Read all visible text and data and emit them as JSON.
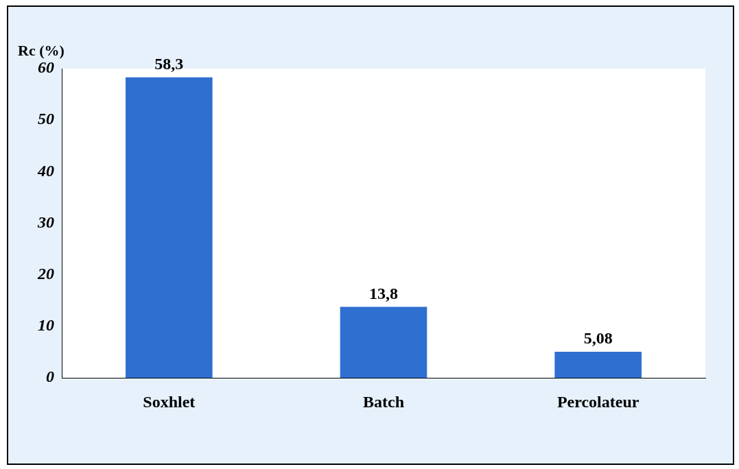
{
  "chart_data": {
    "type": "bar",
    "ylabel": "Rc (%)",
    "categories": [
      "Soxhlet",
      "Batch",
      "Percolateur"
    ],
    "values": [
      58.3,
      13.8,
      5.08
    ],
    "value_labels": [
      "58,3",
      "13,8",
      "5,08"
    ],
    "color": "#2f6fd0",
    "ylim": [
      0,
      60
    ],
    "yticks": [
      0,
      10,
      20,
      30,
      40,
      50,
      60
    ],
    "grid": false,
    "legend": false
  }
}
